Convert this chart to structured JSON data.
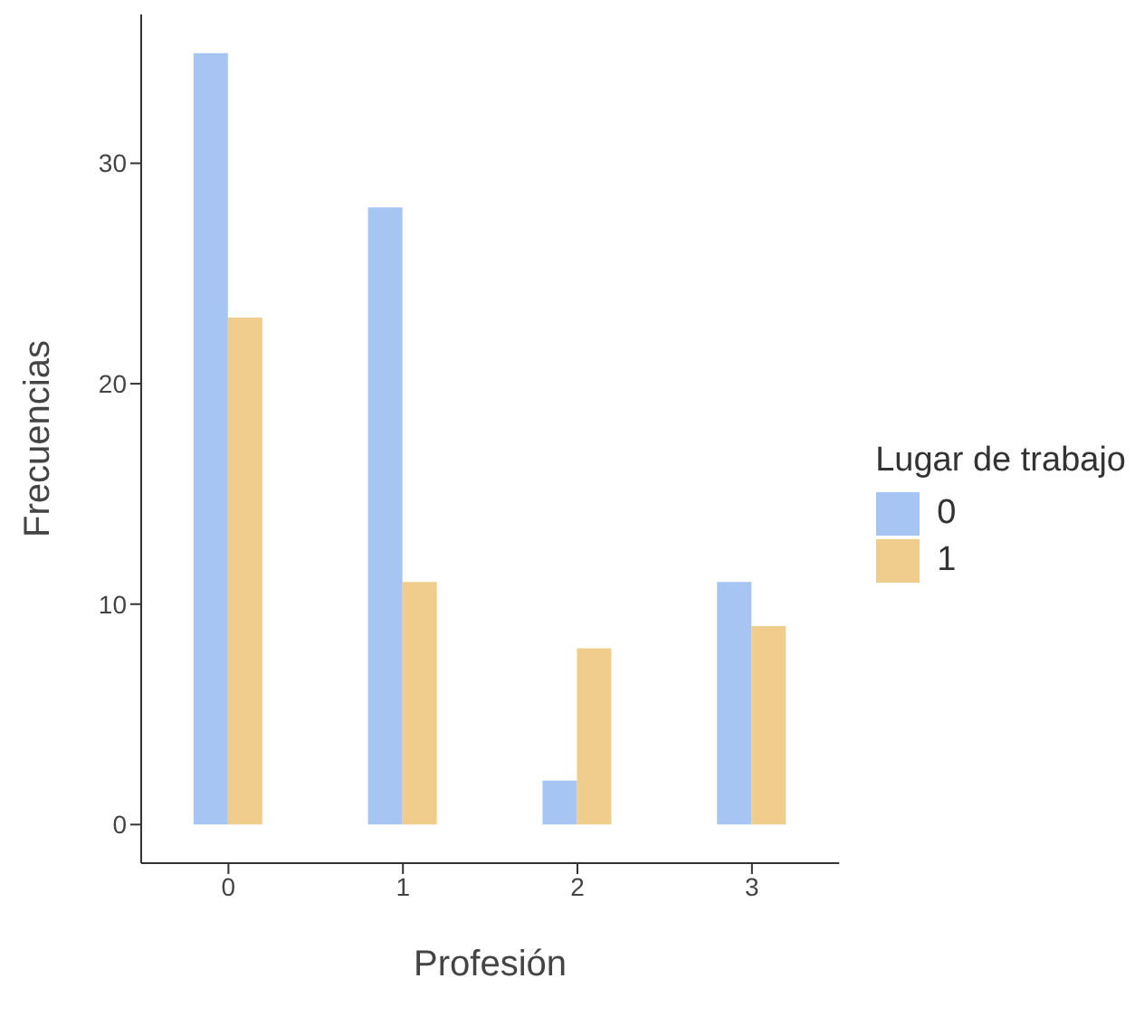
{
  "chart_data": {
    "type": "bar",
    "xlabel": "Profesión",
    "ylabel": "Frecuencias",
    "legend_title": "Lugar de trabajo",
    "categories": [
      "0",
      "1",
      "2",
      "3"
    ],
    "series": [
      {
        "name": "0",
        "color": "#a6c5f2",
        "values": [
          35,
          28,
          2,
          11
        ]
      },
      {
        "name": "1",
        "color": "#f0cd8c",
        "values": [
          23,
          11,
          8,
          9
        ]
      }
    ],
    "ylim": [
      -1.75,
      36.75
    ],
    "yticks": [
      0,
      10,
      20,
      30
    ],
    "grid": false,
    "legend": "right"
  }
}
